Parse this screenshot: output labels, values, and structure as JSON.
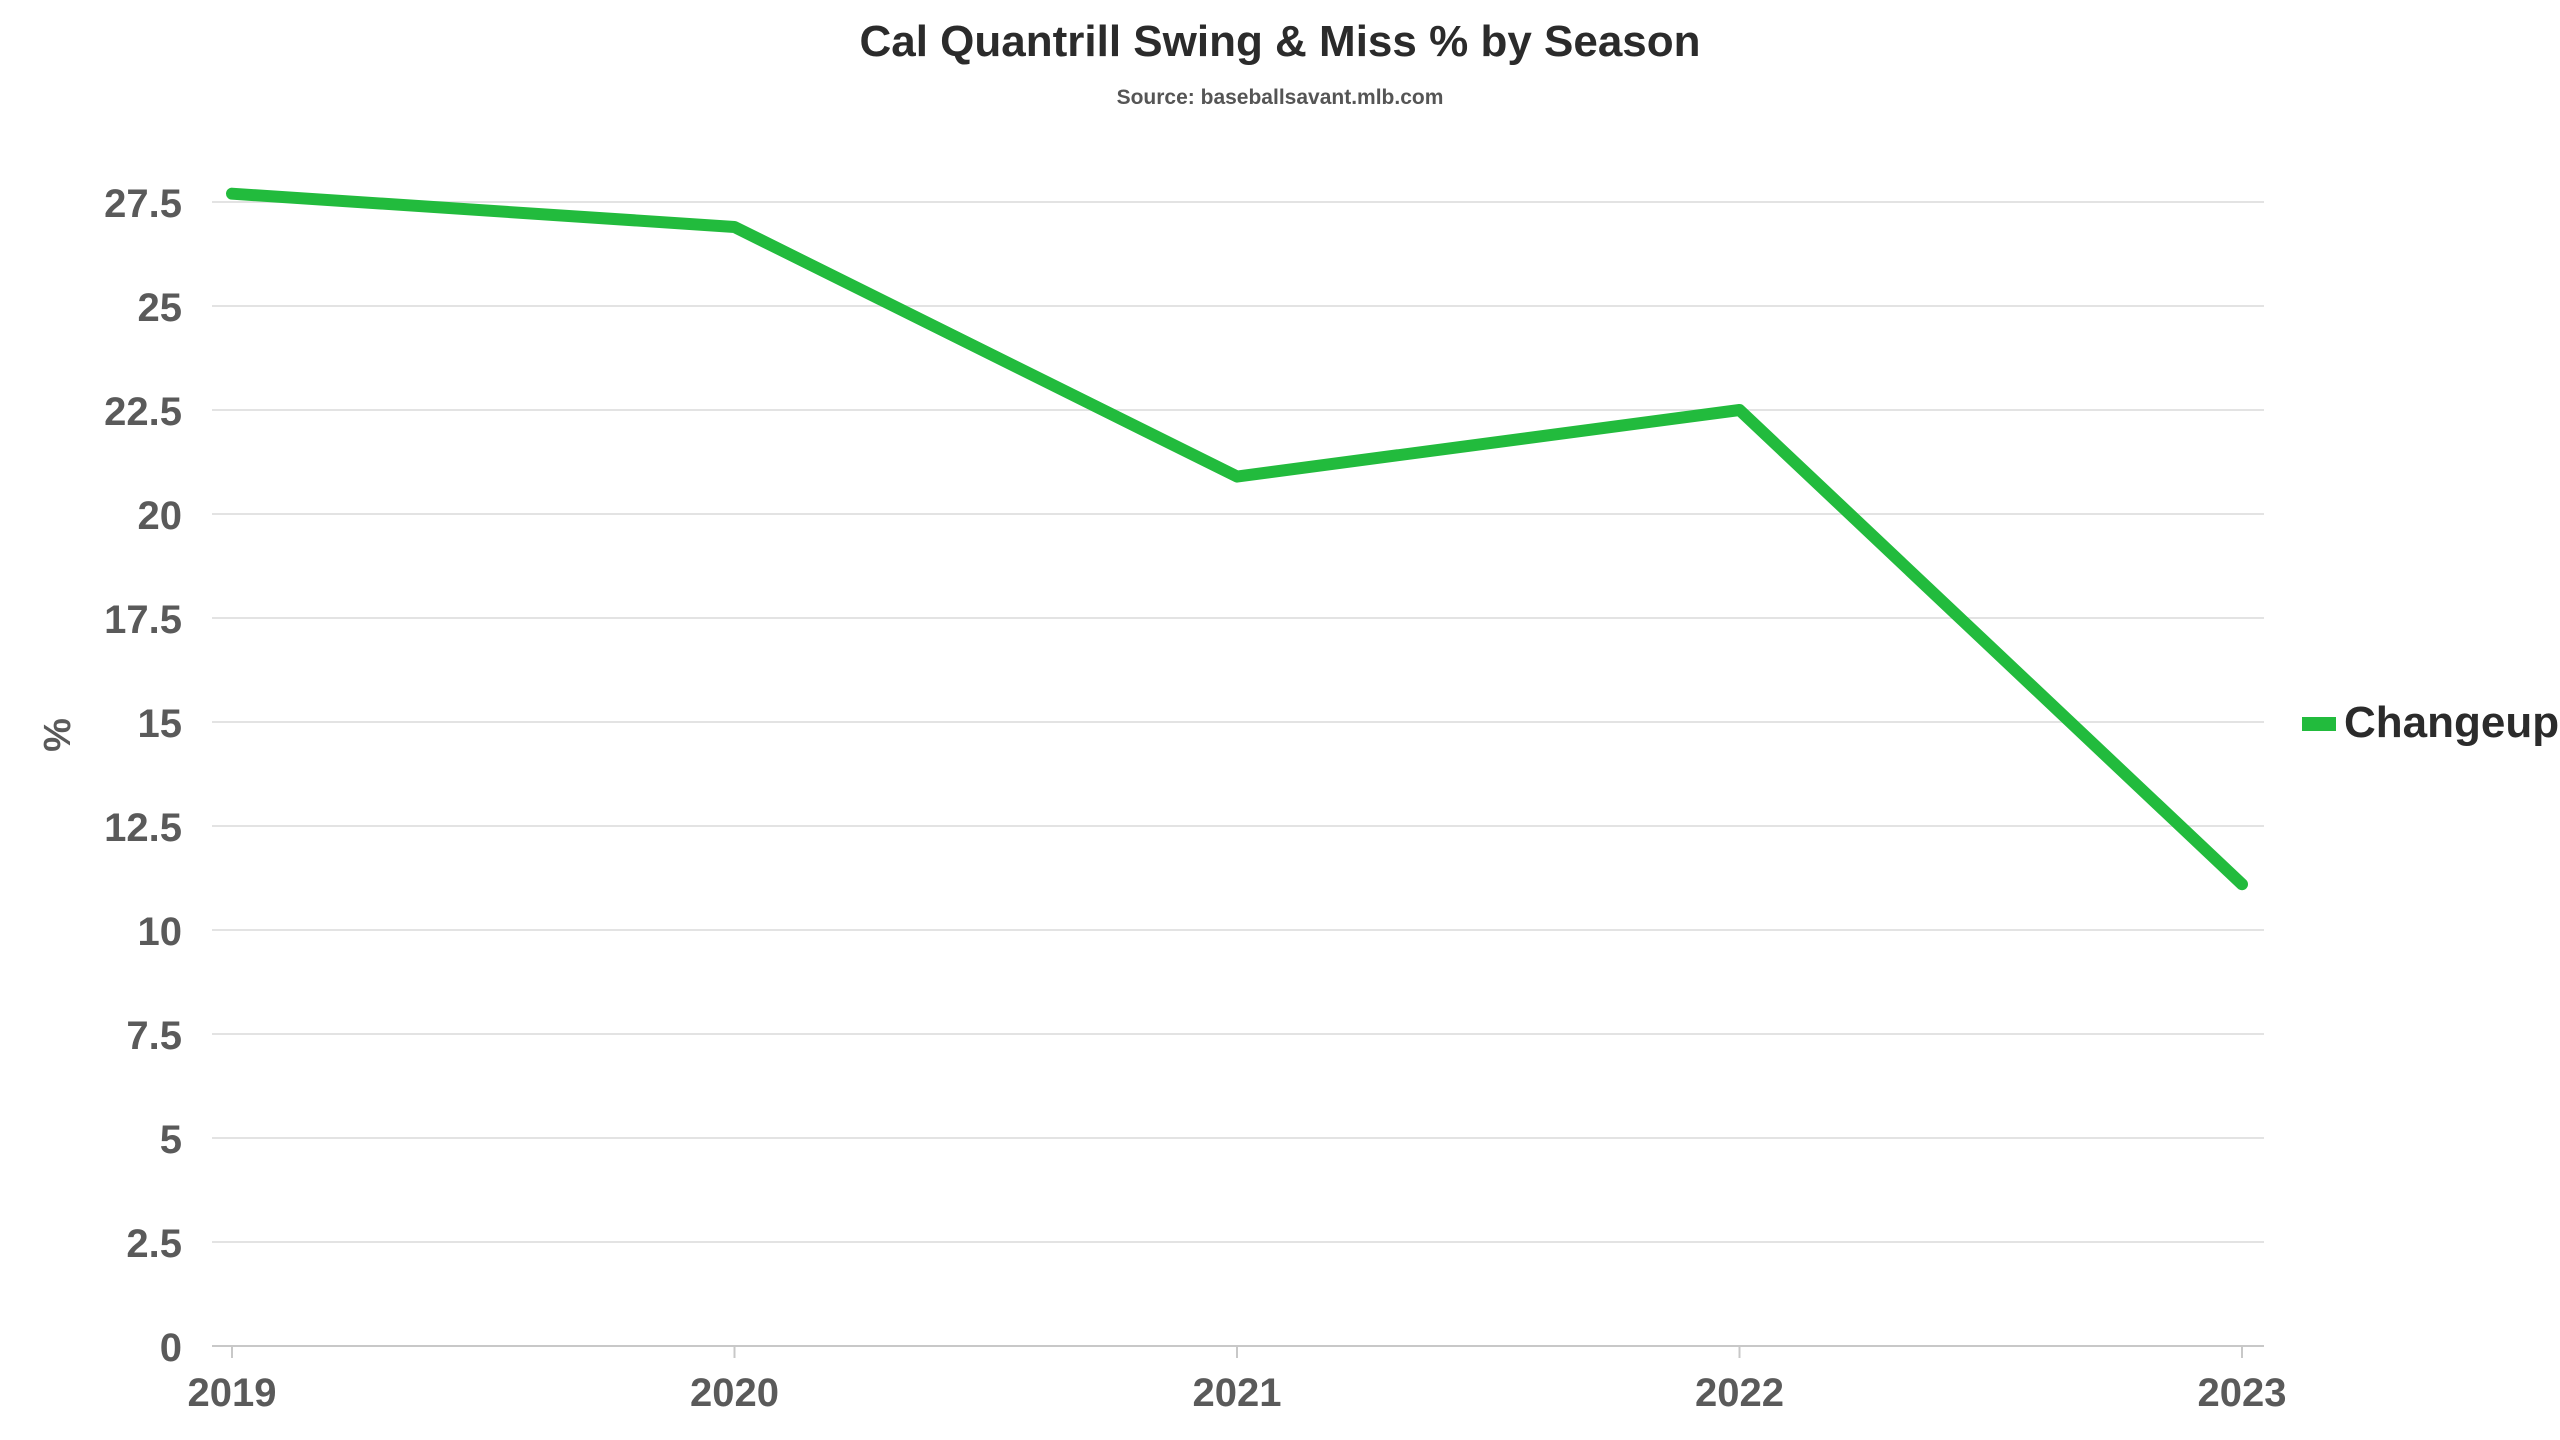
{
  "chart_data": {
    "type": "line",
    "title": "Cal Quantrill Swing & Miss % by Season",
    "subtitle": "Source: baseballsavant.mlb.com",
    "xlabel": "",
    "ylabel": "%",
    "categories": [
      "2019",
      "2020",
      "2021",
      "2022",
      "2023"
    ],
    "ylim": [
      0,
      27.5
    ],
    "yticks": [
      "0",
      "2.5",
      "5",
      "7.5",
      "10",
      "12.5",
      "15",
      "17.5",
      "20",
      "22.5",
      "25",
      "27.5"
    ],
    "grid": true,
    "legend_position": "right",
    "series": [
      {
        "name": "Changeup",
        "color": "#22bb3d",
        "values": [
          27.7,
          26.9,
          20.9,
          22.5,
          11.1
        ]
      }
    ]
  }
}
